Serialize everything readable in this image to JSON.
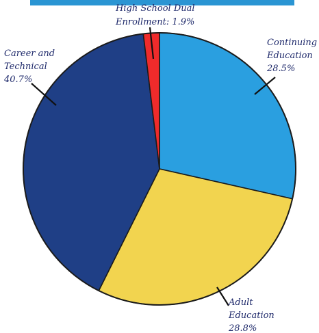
{
  "header_bar": {
    "color": "#2a95d3"
  },
  "chart_data": {
    "type": "pie",
    "start": "12 o'clock, clockwise",
    "slices": [
      {
        "label_lines": [
          "Continuing",
          "Education",
          "28.5%"
        ],
        "value": 28.5,
        "color": "#2a9fe0"
      },
      {
        "label_lines": [
          "Adult",
          "Education",
          "28.8%"
        ],
        "value": 28.8,
        "color": "#f2d44f"
      },
      {
        "label_lines": [
          "Career and",
          "Technical",
          "40.7%"
        ],
        "value": 40.7,
        "color": "#1f3f86"
      },
      {
        "label_lines": [
          "High School Dual",
          "Enrollment: 1.9%"
        ],
        "value": 1.9,
        "color": "#ef2b2b"
      }
    ]
  }
}
